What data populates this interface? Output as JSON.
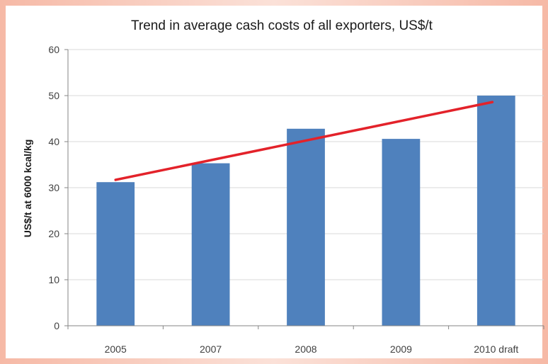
{
  "chart_data": {
    "type": "bar",
    "title": "Trend in average cash costs of all exporters, US$/t",
    "xlabel": "",
    "ylabel": "US$/t at 6000 kcal/kg",
    "categories": [
      "2005",
      "2007",
      "2008",
      "2009",
      "2010 draft"
    ],
    "values": [
      31.2,
      35.3,
      42.8,
      40.6,
      50
    ],
    "ylim": [
      0,
      60
    ],
    "yticks": [
      "0",
      "10",
      "20",
      "30",
      "40",
      "50",
      "60"
    ],
    "grid": true,
    "legend": "none",
    "trendline": {
      "start": 31.7,
      "end": 48.6
    },
    "colors": {
      "bar": "#4f81bd",
      "trend": "#e3222a",
      "grid": "#d9d9d9"
    }
  }
}
